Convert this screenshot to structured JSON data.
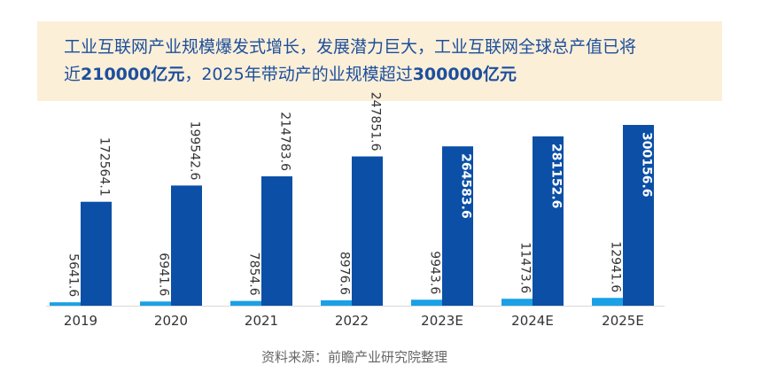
{
  "headline": {
    "line1": "工业互联网产业规模爆发式增长，发展潜力巨大，工业互联网全球总产值已将",
    "line2_prefix": "近",
    "line2_bold1": "210000亿元",
    "line2_middle": "，2025年带动产的业规模超过",
    "line2_bold2": "300000亿元"
  },
  "source": "资料来源：前瞻产业研究院整理",
  "colors": {
    "series_light": "#1aa0e6",
    "series_dark": "#0b4fa6",
    "banner_bg": "#fbefd8",
    "headline_text": "#1d4f9c"
  },
  "chart_data": {
    "type": "bar",
    "categories": [
      "2019",
      "2020",
      "2021",
      "2022",
      "2023E",
      "2024E",
      "2025E"
    ],
    "series": [
      {
        "values": [
          5641.6,
          6941.6,
          7854.6,
          8976.6,
          9943.6,
          11473.6,
          12941.6
        ]
      },
      {
        "values": [
          172564.1,
          199542.6,
          214783.6,
          247851.6,
          264583.6,
          281152.6,
          300156.6
        ]
      }
    ],
    "value_labels": {
      "light": [
        "5641.6",
        "6941.6",
        "7854.6",
        "8976.6",
        "9943.6",
        "11473.6",
        "12941.6"
      ],
      "dark": [
        "172564.1",
        "199542.6",
        "214783.6",
        "247851.6",
        "264583.6",
        "281152.6",
        "300156.6"
      ]
    },
    "title": "",
    "xlabel": "",
    "ylabel": "",
    "ylim": [
      0,
      360000
    ],
    "grid": false,
    "legend": "none"
  }
}
